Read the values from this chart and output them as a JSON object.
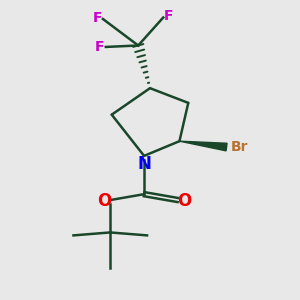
{
  "background_color": "#e8e8e8",
  "bond_color": "#1a472a",
  "N_color": "#0000ee",
  "O_color": "#ee0000",
  "F_color": "#cc00cc",
  "Br_color": "#b87333",
  "figsize": [
    3.0,
    3.0
  ],
  "dpi": 100,
  "xlim": [
    0,
    10
  ],
  "ylim": [
    0,
    10
  ]
}
